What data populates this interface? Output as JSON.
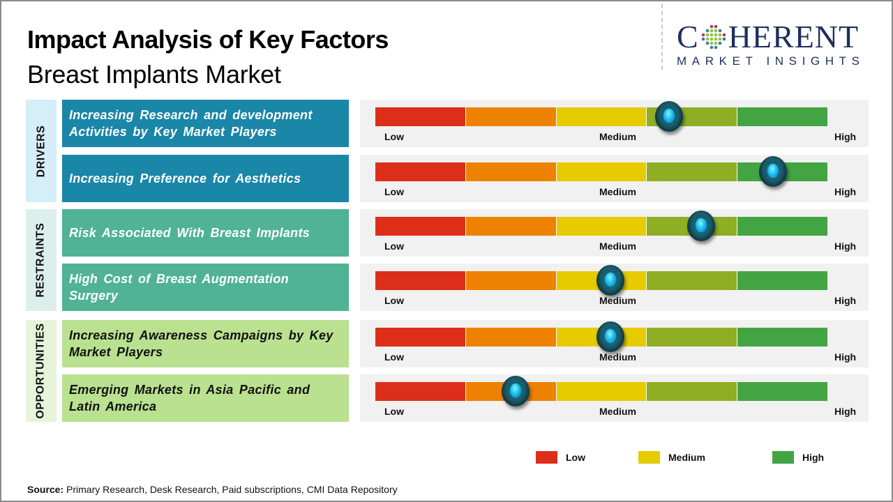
{
  "header": {
    "title": "Impact Analysis of Key Factors",
    "subtitle": "Breast Implants Market"
  },
  "logo": {
    "brand_top": "COHERENT",
    "brand_first": "C",
    "brand_rest": "HERENT",
    "brand_bottom": "MARKET INSIGHTS",
    "icon": "globe-dots-icon"
  },
  "colors": {
    "drivers": "#1a86a8",
    "drivers_cat_bg": "#d5eef7",
    "restraints": "#4fb394",
    "restraints_cat_bg": "#dcefea",
    "opportunities": "#b9e190",
    "opportunities_cat_bg": "#e6f4da",
    "segments": [
      "#dd2e1a",
      "#ec8200",
      "#e5cb00",
      "#8fae24",
      "#43a443"
    ]
  },
  "chart_data": {
    "type": "table",
    "title": "Impact Analysis of Key Factors",
    "subtitle": "Breast Implants Market",
    "scale_labels": [
      "Low",
      "Medium",
      "High"
    ],
    "scale_range": [
      0,
      1
    ],
    "categories": [
      {
        "name": "DRIVERS",
        "factors": [
          {
            "label": "Increasing Research and development Activities by Key Market Players",
            "impact": 0.65
          },
          {
            "label": "Increasing Preference  for Aesthetics",
            "impact": 0.88
          }
        ]
      },
      {
        "name": "RESTRAINTS",
        "factors": [
          {
            "label": "Risk Associated  With Breast Implants",
            "impact": 0.72
          },
          {
            "label": "High Cost of Breast Augmentation Surgery",
            "impact": 0.52
          }
        ]
      },
      {
        "name": "OPPORTUNITIES",
        "factors": [
          {
            "label": "Increasing Awareness Campaigns by Key Market Players",
            "impact": 0.52
          },
          {
            "label": "Emerging Markets in Asia Pacific and Latin America",
            "impact": 0.31
          }
        ]
      }
    ],
    "legend": [
      {
        "label": "Low",
        "color": "#dd2e1a"
      },
      {
        "label": "Medium",
        "color": "#e5cb00"
      },
      {
        "label": "High",
        "color": "#43a443"
      }
    ]
  },
  "footer": {
    "source_label": "Source:",
    "source_text": " Primary Research, Desk Research, Paid subscriptions, CMI Data Repository"
  }
}
